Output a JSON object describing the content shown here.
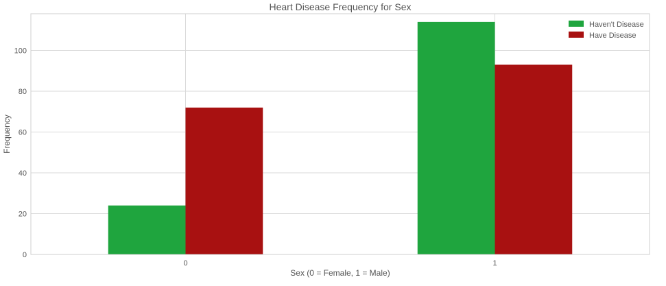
{
  "chart_data": {
    "type": "bar",
    "title": "Heart Disease Frequency for Sex",
    "xlabel": "Sex (0 = Female, 1 = Male)",
    "ylabel": "Frequency",
    "categories": [
      "0",
      "1"
    ],
    "series": [
      {
        "name": "Haven't Disease",
        "values": [
          24,
          114
        ],
        "color": "#1fa53e"
      },
      {
        "name": "Have Disease",
        "values": [
          72,
          93
        ],
        "color": "#a81111"
      }
    ],
    "ylim": [
      0,
      118
    ],
    "yticks": [
      0,
      20,
      40,
      60,
      80,
      100
    ],
    "grid": true,
    "legend_position": "top-right"
  }
}
